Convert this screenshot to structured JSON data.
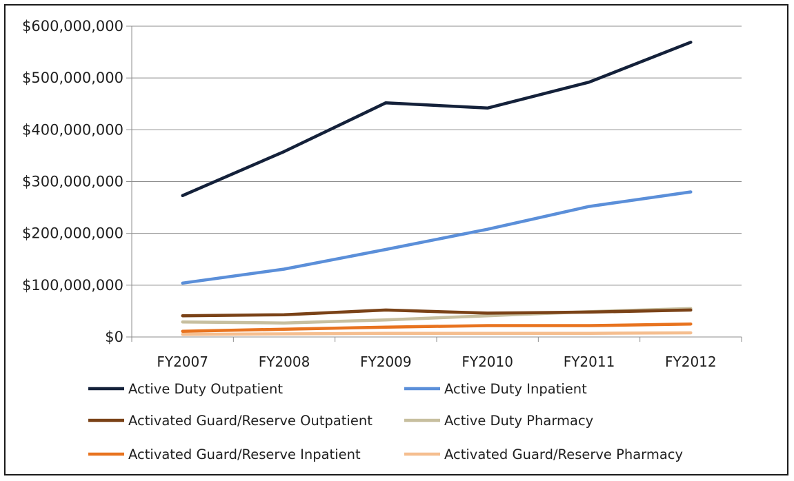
{
  "chart_data": {
    "type": "line",
    "title": "",
    "xlabel": "",
    "ylabel": "",
    "ylim": [
      0,
      600000000
    ],
    "ytick_values": [
      0,
      100000000,
      200000000,
      300000000,
      400000000,
      500000000,
      600000000
    ],
    "ytick_labels": [
      "$0",
      "$100,000,000",
      "$200,000,000",
      "$300,000,000",
      "$400,000,000",
      "$500,000,000",
      "$600,000,000"
    ],
    "categories": [
      "FY2007",
      "FY2008",
      "FY2009",
      "FY2010",
      "FY2011",
      "FY2012"
    ],
    "grid": "horizontal",
    "legend_placement": "bottom",
    "series": [
      {
        "name": "Active Duty Outpatient",
        "color": "#14213a",
        "values": [
          273000000,
          358000000,
          452000000,
          442000000,
          492000000,
          569000000
        ]
      },
      {
        "name": "Active Duty Inpatient",
        "color": "#5b8fd9",
        "values": [
          104000000,
          131000000,
          169000000,
          208000000,
          252000000,
          280000000
        ]
      },
      {
        "name": "Activated Guard/Reserve Outpatient",
        "color": "#7a4217",
        "values": [
          41000000,
          43000000,
          52000000,
          46000000,
          48000000,
          52000000
        ]
      },
      {
        "name": "Active Duty Pharmacy",
        "color": "#c7bf9f",
        "values": [
          29000000,
          27000000,
          33000000,
          41000000,
          49000000,
          55000000
        ]
      },
      {
        "name": "Activated Guard/Reserve Inpatient",
        "color": "#e8731f",
        "values": [
          11000000,
          15000000,
          19000000,
          22000000,
          22000000,
          25000000
        ]
      },
      {
        "name": "Activated Guard/Reserve Pharmacy",
        "color": "#f5be8f",
        "values": [
          5000000,
          6000000,
          7000000,
          7000000,
          7000000,
          8000000
        ]
      }
    ]
  }
}
